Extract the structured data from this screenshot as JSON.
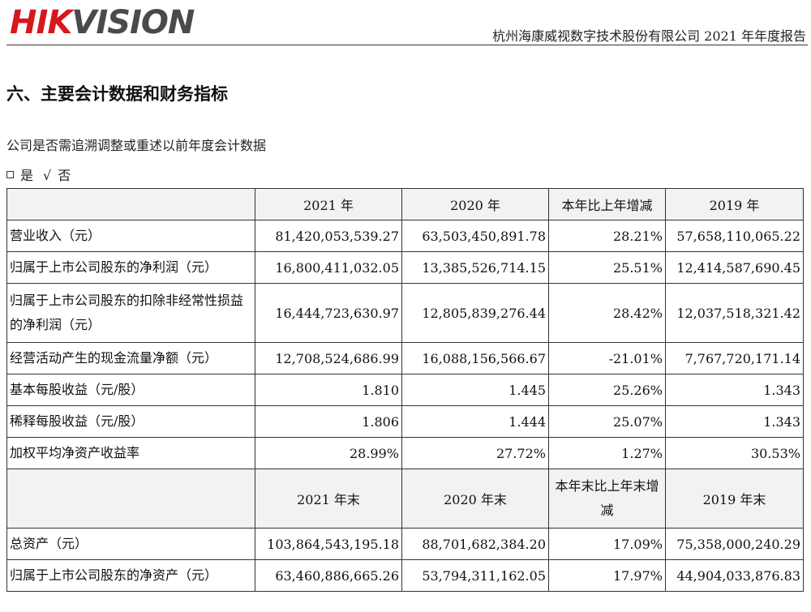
{
  "header": {
    "logo_part1": "HIK",
    "logo_part2": "VISION",
    "report_title": "杭州海康威视数字技术股份有限公司 2021 年年度报告"
  },
  "section_title": "六、主要会计数据和财务指标",
  "question": "公司是否需追溯调整或重述以前年度会计数据",
  "answer": {
    "yes_label": "是",
    "check_mark": "√",
    "no_label": "否"
  },
  "table1": {
    "headers": [
      "",
      "2021 年",
      "2020 年",
      "本年比上年增减",
      "2019 年"
    ],
    "rows": [
      [
        "营业收入（元）",
        "81,420,053,539.27",
        "63,503,450,891.78",
        "28.21%",
        "57,658,110,065.22"
      ],
      [
        "归属于上市公司股东的净利润（元）",
        "16,800,411,032.05",
        "13,385,526,714.15",
        "25.51%",
        "12,414,587,690.45"
      ],
      [
        "归属于上市公司股东的扣除非经常性损益的净利润（元）",
        "16,444,723,630.97",
        "12,805,839,276.44",
        "28.42%",
        "12,037,518,321.42"
      ],
      [
        "经营活动产生的现金流量净额（元）",
        "12,708,524,686.99",
        "16,088,156,566.67",
        "-21.01%",
        "7,767,720,171.14"
      ],
      [
        "基本每股收益（元/股）",
        "1.810",
        "1.445",
        "25.26%",
        "1.343"
      ],
      [
        "稀释每股收益（元/股）",
        "1.806",
        "1.444",
        "25.07%",
        "1.343"
      ],
      [
        "加权平均净资产收益率",
        "28.99%",
        "27.72%",
        "1.27%",
        "30.53%"
      ]
    ]
  },
  "table2": {
    "headers": [
      "",
      "2021 年末",
      "2020 年末",
      "本年末比上年末增减",
      "2019 年末"
    ],
    "rows": [
      [
        "总资产（元）",
        "103,864,543,195.18",
        "88,701,682,384.20",
        "17.09%",
        "75,358,000,240.29"
      ],
      [
        "归属于上市公司股东的净资产（元）",
        "63,460,886,665.26",
        "53,794,311,162.05",
        "17.97%",
        "44,904,033,876.83"
      ]
    ]
  },
  "colors": {
    "logo_red": "#d7161d",
    "logo_gray": "#4a4a4a",
    "header_row_bg": "#f2f2f2"
  }
}
